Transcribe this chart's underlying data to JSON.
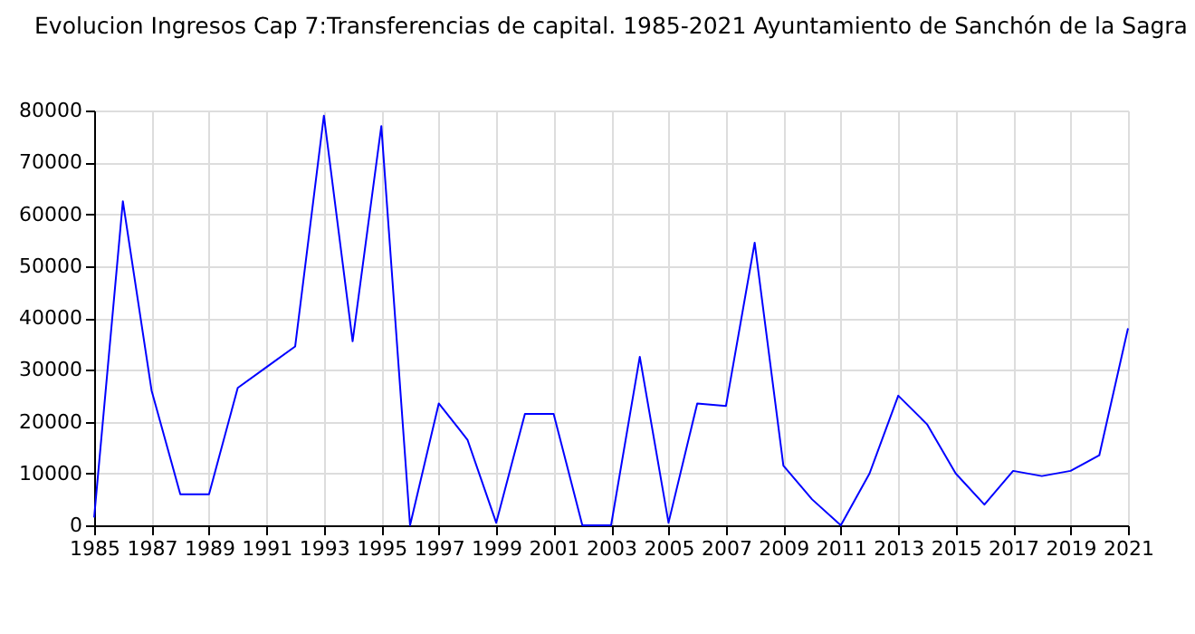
{
  "chart_data": {
    "type": "line",
    "title": "Evolucion Ingresos Cap 7:Transferencias de capital. 1985-2021 Ayuntamiento de Sanchón de la Sagra",
    "x": [
      1985,
      1986,
      1987,
      1988,
      1989,
      1990,
      1991,
      1992,
      1993,
      1994,
      1995,
      1996,
      1997,
      1998,
      1999,
      2000,
      2001,
      2002,
      2003,
      2004,
      2005,
      2006,
      2007,
      2008,
      2009,
      2010,
      2011,
      2012,
      2013,
      2014,
      2015,
      2016,
      2017,
      2018,
      2019,
      2020,
      2021
    ],
    "series": [
      {
        "color": "#0000ff",
        "values": [
          1500,
          62500,
          26000,
          6000,
          6000,
          26500,
          30500,
          34500,
          79000,
          35500,
          77000,
          0,
          23500,
          16500,
          500,
          21500,
          21500,
          0,
          0,
          32500,
          500,
          23500,
          23000,
          54500,
          11500,
          5000,
          0,
          10000,
          25000,
          19500,
          10000,
          4000,
          10500,
          9500,
          10500,
          13500,
          38000
        ]
      }
    ],
    "xlim": [
      1985,
      2021
    ],
    "xticks": [
      1985,
      1987,
      1989,
      1991,
      1993,
      1995,
      1997,
      1999,
      2001,
      2003,
      2005,
      2007,
      2009,
      2011,
      2013,
      2015,
      2017,
      2019,
      2021
    ],
    "ylim": [
      0,
      80000
    ],
    "yticks": [
      0,
      10000,
      20000,
      30000,
      40000,
      50000,
      60000,
      70000,
      80000
    ],
    "grid": true,
    "marker": "none",
    "line_style": "solid"
  }
}
